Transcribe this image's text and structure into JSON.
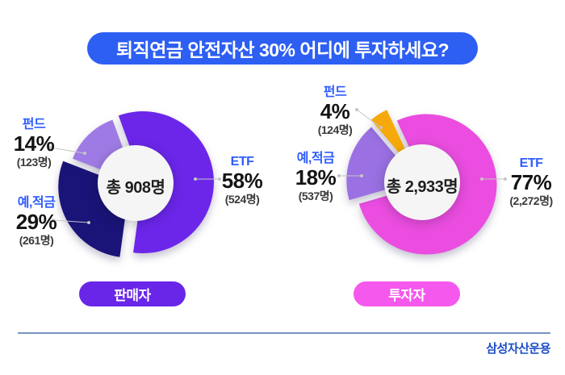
{
  "title": "퇴직연금 안전자산 30% 어디에 투자하세요?",
  "colors": {
    "title_pill": "#2D5FF3",
    "label_blue": "#2E5BFF",
    "leader_gray": "#C5C5C5",
    "donut_hole": "#F5F5F6",
    "footer_line": "#7796C0",
    "logo_blue": "#1C4EC5"
  },
  "footer": {
    "logo_text": "삼성자산운용"
  },
  "chart_data": [
    {
      "type": "pie",
      "group_label": "판매자",
      "accent": "#6926E8",
      "total": 908,
      "total_label": "총 908명",
      "slices": [
        {
          "name": "ETF",
          "pct": "58%",
          "value_pct": 58,
          "count": 524,
          "count_label": "(524명)",
          "color": "#6B26EA"
        },
        {
          "name": "예,적금",
          "pct": "29%",
          "value_pct": 29,
          "count": 261,
          "count_label": "(261명)",
          "color": "#1A1478"
        },
        {
          "name": "펀드",
          "pct": "14%",
          "value_pct": 14,
          "count": 123,
          "count_label": "(123명)",
          "color": "#9E7BE4"
        }
      ]
    },
    {
      "type": "pie",
      "group_label": "투자자",
      "accent": "#F558EC",
      "total": 2933,
      "total_label": "총 2,933명",
      "slices": [
        {
          "name": "ETF",
          "pct": "77%",
          "value_pct": 77,
          "count": 2272,
          "count_label": "(2,272명)",
          "color": "#EA4DE0"
        },
        {
          "name": "예,적금",
          "pct": "18%",
          "value_pct": 18,
          "count": 537,
          "count_label": "(537명)",
          "color": "#9A70E2"
        },
        {
          "name": "펀드",
          "pct": "4%",
          "value_pct": 4,
          "count": 124,
          "count_label": "(124명)",
          "color": "#F6A90A"
        }
      ]
    }
  ]
}
